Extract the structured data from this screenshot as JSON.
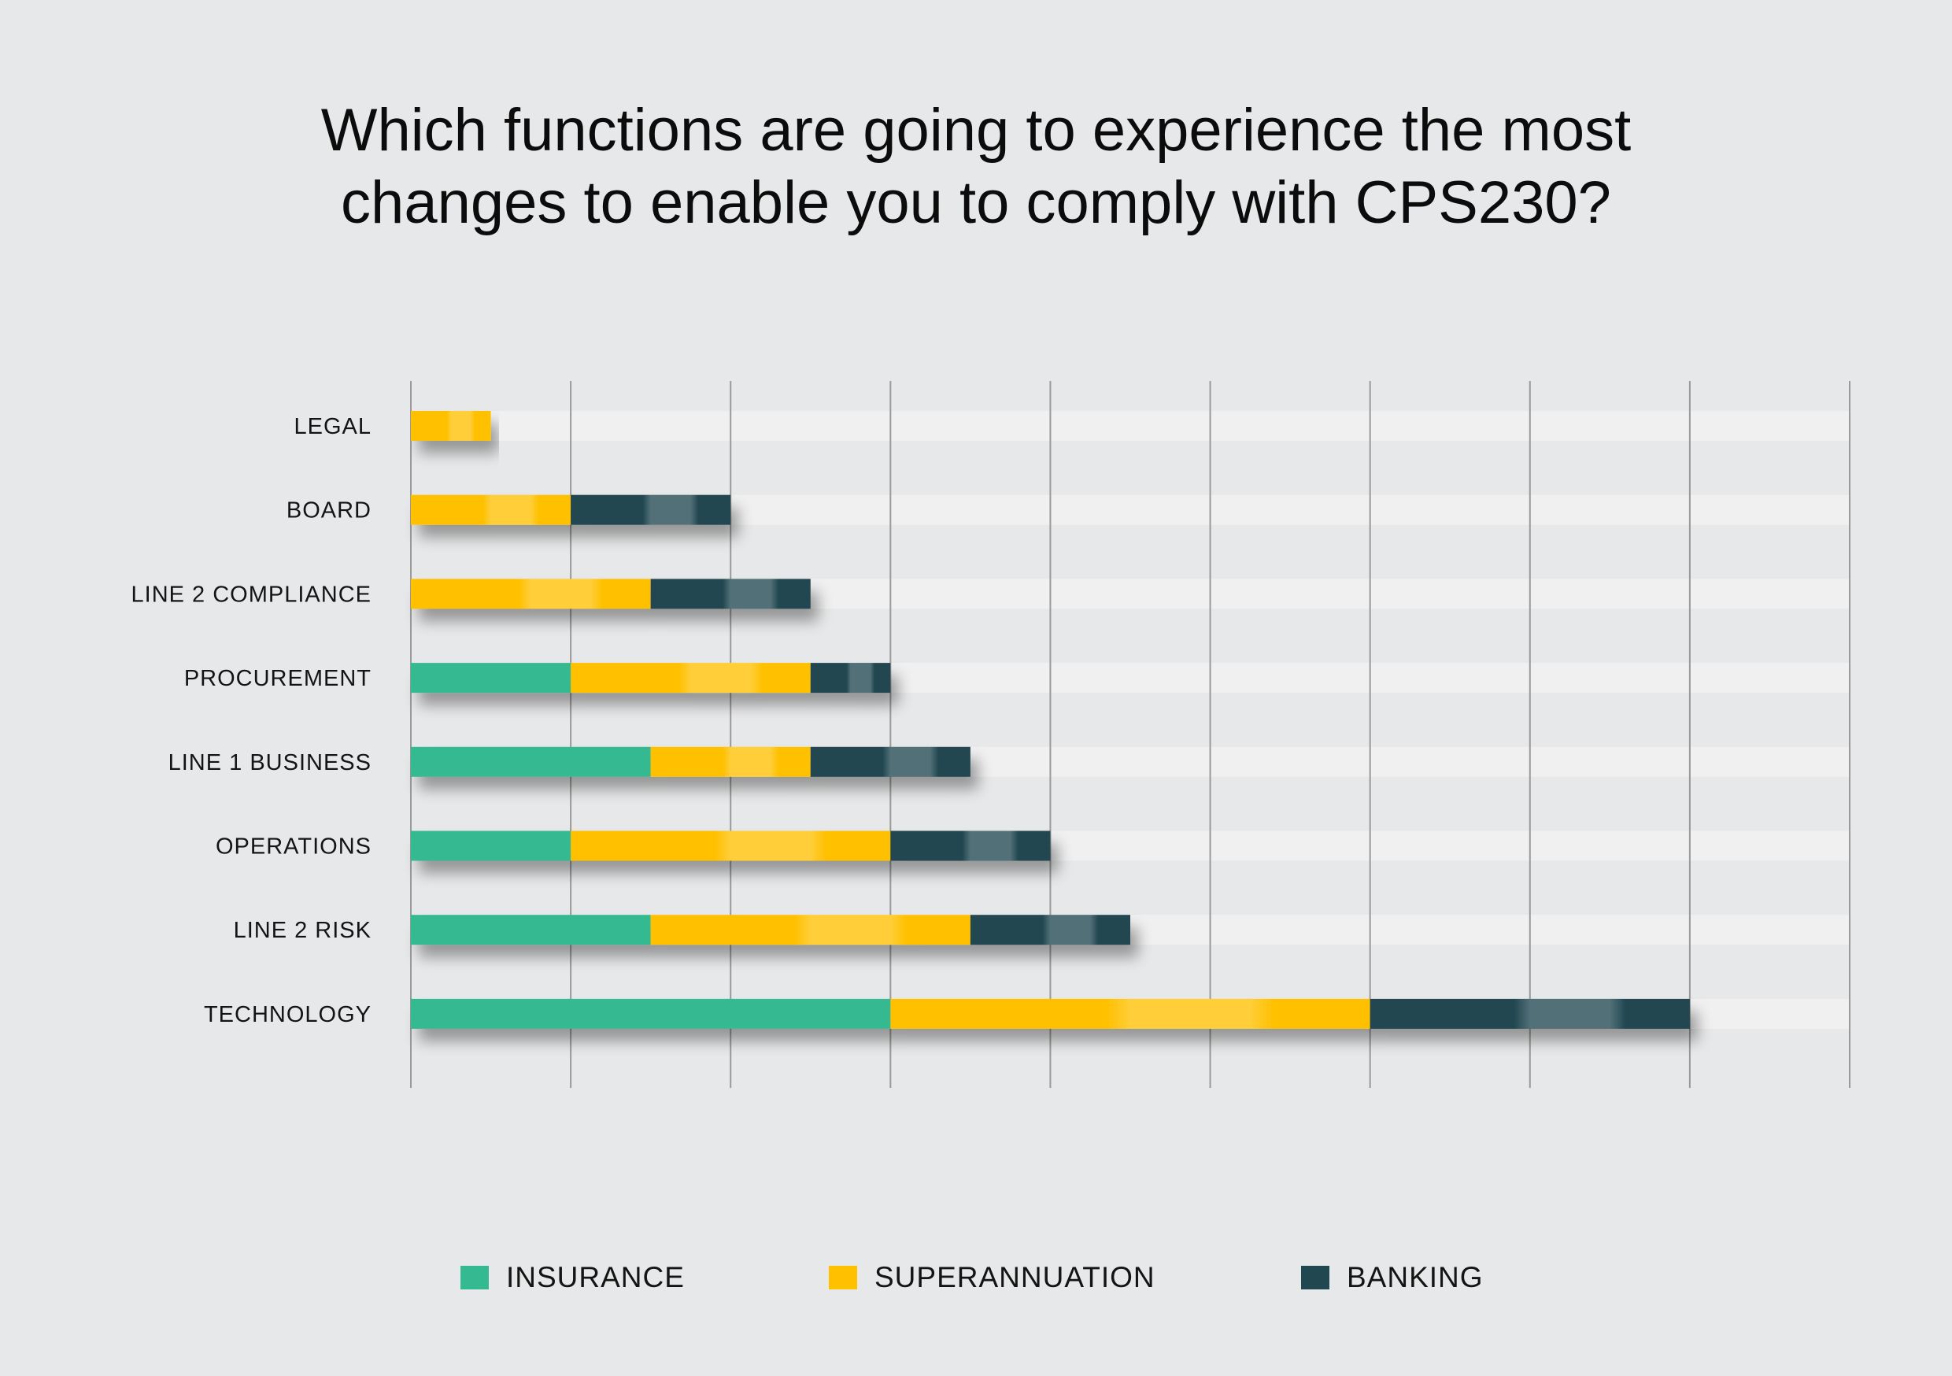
{
  "title": {
    "line1": "Which functions are going to experience the most",
    "line2": "changes to enable you to comply with CPS230?"
  },
  "colors": {
    "insurance": "#35b991",
    "superannuation": "#ffc000",
    "banking": "#214751",
    "track": "#f0f0f0",
    "grid": "#9a9a9a"
  },
  "chart_data": {
    "type": "bar",
    "orientation": "horizontal",
    "stacked": true,
    "title": "Which functions are going to experience the most changes to enable you to comply with CPS230?",
    "categories": [
      "LEGAL",
      "BOARD",
      "LINE 2 COMPLIANCE",
      "PROCUREMENT",
      "LINE 1 BUSINESS",
      "OPERATIONS",
      "LINE 2 RISK",
      "TECHNOLOGY"
    ],
    "series": [
      {
        "name": "INSURANCE",
        "values": [
          0,
          0,
          0,
          1,
          1.5,
          1,
          1.5,
          3
        ]
      },
      {
        "name": "SUPERANNUATION",
        "values": [
          0.5,
          1,
          1.5,
          1.5,
          1,
          2,
          2,
          3
        ]
      },
      {
        "name": "BANKING",
        "values": [
          0,
          1,
          1,
          0.5,
          1,
          1,
          1,
          2
        ]
      }
    ],
    "xlim": [
      0,
      9
    ],
    "grid": true,
    "legend_position": "bottom"
  }
}
